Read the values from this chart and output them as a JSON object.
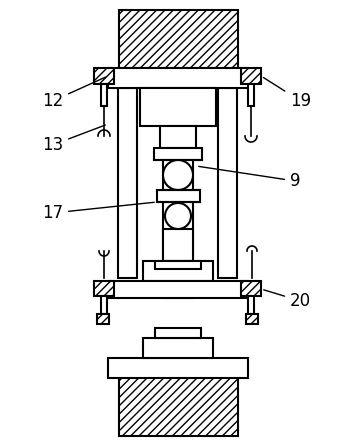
{
  "line_color": "#000000",
  "bg_color": "#ffffff",
  "line_width": 1.5,
  "label_fontsize": 12,
  "fig_w": 3.55,
  "fig_h": 4.46,
  "dpi": 100
}
